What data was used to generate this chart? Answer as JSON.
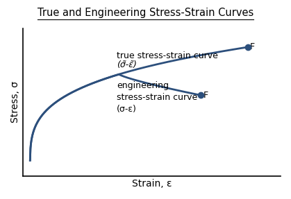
{
  "title": "True and Engineering Stress-Strain Curves",
  "xlabel": "Strain, ε",
  "ylabel": "Stress, σ",
  "background_color": "#ffffff",
  "curve_color": "#2c4f7c",
  "title_fontsize": 10.5,
  "label_fontsize": 10,
  "annotation_fontsize": 9,
  "true_label_line1": "true stress-strain curve",
  "true_label_line2": "(σ̃-ε̃)",
  "eng_label_line1": "engineering\nstress-strain curve\n(σ-ε)"
}
